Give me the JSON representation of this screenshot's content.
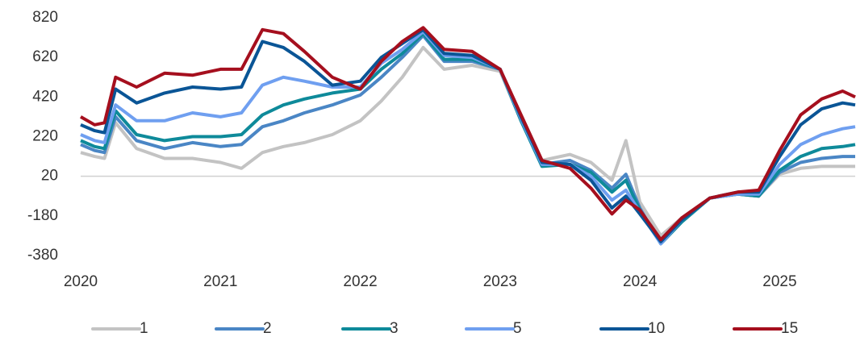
{
  "chart_data": {
    "type": "line",
    "x": [
      2020.0,
      2020.1,
      2020.17,
      2020.25,
      2020.4,
      2020.6,
      2020.8,
      2021.0,
      2021.15,
      2021.3,
      2021.45,
      2021.6,
      2021.8,
      2022.0,
      2022.15,
      2022.3,
      2022.45,
      2022.6,
      2022.8,
      2023.0,
      2023.15,
      2023.3,
      2023.5,
      2023.65,
      2023.8,
      2023.9,
      2024.0,
      2024.15,
      2024.3,
      2024.5,
      2024.7,
      2024.85,
      2025.0,
      2025.15,
      2025.3,
      2025.45,
      2025.54
    ],
    "xlim": [
      2020,
      2025.54
    ],
    "xticks": [
      2020,
      2021,
      2022,
      2023,
      2024,
      2025
    ],
    "ylim": [
      -380,
      820
    ],
    "yticks": [
      -380,
      -180,
      20,
      220,
      420,
      620,
      820
    ],
    "hline": 20,
    "series": [
      {
        "name": "1",
        "color": "#c3c3c3",
        "values": [
          140,
          120,
          110,
          290,
          160,
          110,
          110,
          90,
          60,
          140,
          170,
          190,
          230,
          300,
          400,
          520,
          670,
          560,
          580,
          550,
          300,
          100,
          130,
          90,
          0,
          200,
          -110,
          -280,
          -190,
          -90,
          -70,
          -80,
          30,
          60,
          70,
          70,
          70
        ]
      },
      {
        "name": "2",
        "color": "#4a86c5",
        "values": [
          180,
          150,
          140,
          320,
          200,
          160,
          190,
          170,
          180,
          270,
          300,
          340,
          380,
          430,
          520,
          620,
          730,
          600,
          600,
          560,
          300,
          80,
          100,
          50,
          -40,
          30,
          -140,
          -320,
          -210,
          -90,
          -70,
          -80,
          40,
          90,
          110,
          120,
          120
        ]
      },
      {
        "name": "3",
        "color": "#0e8a9a",
        "values": [
          200,
          170,
          160,
          350,
          230,
          200,
          220,
          220,
          230,
          330,
          380,
          410,
          440,
          460,
          560,
          640,
          740,
          610,
          610,
          560,
          300,
          70,
          80,
          40,
          -60,
          0,
          -150,
          -320,
          -210,
          -90,
          -70,
          -80,
          50,
          120,
          160,
          170,
          180
        ]
      },
      {
        "name": "5",
        "color": "#6f9ff0",
        "values": [
          230,
          200,
          190,
          380,
          300,
          300,
          340,
          320,
          340,
          480,
          520,
          500,
          470,
          470,
          590,
          660,
          750,
          630,
          620,
          560,
          310,
          80,
          80,
          20,
          -100,
          -50,
          -160,
          -320,
          -200,
          -90,
          -70,
          -70,
          80,
          180,
          230,
          260,
          270
        ]
      },
      {
        "name": "10",
        "color": "#0a5596",
        "values": [
          280,
          250,
          240,
          460,
          390,
          440,
          470,
          460,
          470,
          700,
          670,
          600,
          480,
          500,
          620,
          690,
          760,
          640,
          630,
          560,
          320,
          90,
          80,
          0,
          -140,
          -80,
          -170,
          -310,
          -200,
          -90,
          -60,
          -60,
          120,
          280,
          360,
          390,
          380
        ]
      },
      {
        "name": "15",
        "color": "#a50f1e",
        "values": [
          320,
          280,
          290,
          520,
          470,
          540,
          530,
          560,
          560,
          760,
          740,
          650,
          520,
          460,
          600,
          700,
          770,
          660,
          650,
          560,
          330,
          100,
          60,
          -40,
          -170,
          -100,
          -150,
          -300,
          -190,
          -90,
          -60,
          -50,
          150,
          330,
          410,
          450,
          420
        ]
      }
    ]
  }
}
